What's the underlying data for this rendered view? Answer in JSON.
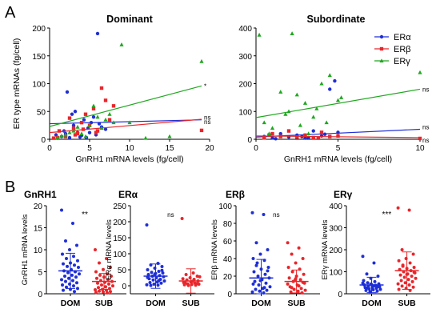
{
  "panel_labels": [
    "A",
    "B"
  ],
  "chart_data": [
    {
      "type": "scatter",
      "title": "Dominant",
      "xlabel": "GnRH1 mRNA levels (fg/cell)",
      "ylabel": "ER type mRNAs (fg/cell)",
      "xlim": [
        0,
        20
      ],
      "ylim": [
        0,
        200
      ],
      "xticks": [
        0,
        5,
        10,
        15,
        20
      ],
      "yticks": [
        0,
        50,
        100,
        150,
        200
      ],
      "series": [
        {
          "name": "ERα",
          "color": "#1f2fd6",
          "marker": "circle",
          "points": [
            [
              1,
              2
            ],
            [
              1.5,
              5
            ],
            [
              2,
              10
            ],
            [
              2.5,
              3
            ],
            [
              2.8,
              45
            ],
            [
              3,
              25
            ],
            [
              3.2,
              50
            ],
            [
              3.5,
              12
            ],
            [
              4,
              7
            ],
            [
              4.3,
              35
            ],
            [
              4.8,
              20
            ],
            [
              5,
              12
            ],
            [
              5.2,
              30
            ],
            [
              5.5,
              40
            ],
            [
              5.8,
              8
            ],
            [
              6,
              190
            ],
            [
              6.5,
              22
            ],
            [
              7,
              18
            ],
            [
              0.8,
              8
            ],
            [
              1.8,
              15
            ],
            [
              2.2,
              85
            ],
            [
              3.8,
              4
            ],
            [
              6.2,
              28
            ],
            [
              4.6,
              3
            ]
          ],
          "fit": [
            [
              0,
              28
            ],
            [
              19,
              35
            ]
          ],
          "fit_label": "ns"
        },
        {
          "name": "ERβ",
          "color": "#e8262b",
          "marker": "square",
          "points": [
            [
              1.2,
              15
            ],
            [
              2,
              5
            ],
            [
              2.5,
              38
            ],
            [
              3,
              20
            ],
            [
              3.5,
              10
            ],
            [
              4,
              30
            ],
            [
              4.5,
              45
            ],
            [
              5,
              25
            ],
            [
              5.5,
              55
            ],
            [
              6,
              15
            ],
            [
              6.5,
              92
            ],
            [
              7,
              70
            ],
            [
              7.5,
              35
            ],
            [
              8,
              60
            ],
            [
              1,
              3
            ],
            [
              3.2,
              8
            ],
            [
              5.8,
              12
            ],
            [
              19,
              16
            ],
            [
              0.5,
              2
            ],
            [
              4.2,
              18
            ]
          ],
          "fit": [
            [
              0,
              12
            ],
            [
              19,
              36
            ]
          ],
          "fit_label": "ns"
        },
        {
          "name": "ERγ",
          "color": "#1fa81f",
          "marker": "triangle",
          "points": [
            [
              1,
              3
            ],
            [
              2,
              8
            ],
            [
              3,
              15
            ],
            [
              4,
              10
            ],
            [
              5,
              25
            ],
            [
              6,
              40
            ],
            [
              6.5,
              20
            ],
            [
              7,
              35
            ],
            [
              8,
              30
            ],
            [
              9,
              170
            ],
            [
              10,
              30
            ],
            [
              12,
              2
            ],
            [
              15,
              5
            ],
            [
              19,
              140
            ],
            [
              2.5,
              12
            ],
            [
              4.5,
              5
            ],
            [
              5.5,
              60
            ],
            [
              7.5,
              45
            ],
            [
              3.5,
              22
            ],
            [
              1.5,
              6
            ]
          ],
          "fit": [
            [
              0,
              23
            ],
            [
              19,
              96
            ]
          ],
          "fit_label": "*"
        }
      ]
    },
    {
      "type": "scatter",
      "title": "Subordinate",
      "xlabel": "GnRH1 mRNA levels (fg/cell)",
      "ylabel": "",
      "xlim": [
        0,
        10
      ],
      "ylim": [
        0,
        400
      ],
      "xticks": [
        0,
        5,
        10
      ],
      "yticks": [
        0,
        100,
        200,
        300,
        400
      ],
      "legend_position": "top-right",
      "series": [
        {
          "name": "ERα",
          "color": "#1f2fd6",
          "marker": "circle",
          "points": [
            [
              0.5,
              10
            ],
            [
              1,
              5
            ],
            [
              1.5,
              20
            ],
            [
              2,
              8
            ],
            [
              2.5,
              15
            ],
            [
              3,
              4
            ],
            [
              3.5,
              30
            ],
            [
              4,
              12
            ],
            [
              4.5,
              180
            ],
            [
              4.8,
              210
            ],
            [
              5,
              25
            ],
            [
              3.2,
              6
            ],
            [
              1.2,
              2
            ],
            [
              2.8,
              10
            ],
            [
              4.2,
              18
            ]
          ],
          "fit": [
            [
              0,
              8
            ],
            [
              10,
              36
            ]
          ],
          "fit_label": "ns"
        },
        {
          "name": "ERβ",
          "color": "#e8262b",
          "marker": "square",
          "points": [
            [
              0.5,
              5
            ],
            [
              1,
              20
            ],
            [
              1.5,
              10
            ],
            [
              2,
              30
            ],
            [
              2.5,
              8
            ],
            [
              3,
              15
            ],
            [
              3.5,
              6
            ],
            [
              4,
              25
            ],
            [
              4.5,
              10
            ],
            [
              5,
              12
            ],
            [
              0.8,
              15
            ],
            [
              3.8,
              4
            ],
            [
              10,
              3
            ]
          ],
          "fit": [
            [
              0,
              12
            ],
            [
              10,
              6
            ]
          ],
          "fit_label": "ns"
        },
        {
          "name": "ERγ",
          "color": "#1fa81f",
          "marker": "triangle",
          "points": [
            [
              0.2,
              375
            ],
            [
              0.5,
              60
            ],
            [
              1,
              40
            ],
            [
              1.5,
              170
            ],
            [
              2,
              100
            ],
            [
              2.5,
              160
            ],
            [
              3,
              130
            ],
            [
              3.5,
              80
            ],
            [
              4,
              200
            ],
            [
              4.5,
              230
            ],
            [
              5,
              140
            ],
            [
              5.2,
              150
            ],
            [
              10,
              240
            ],
            [
              2.2,
              380
            ],
            [
              3.2,
              20
            ],
            [
              1.8,
              90
            ],
            [
              4.3,
              60
            ],
            [
              0.8,
              20
            ],
            [
              2.7,
              50
            ],
            [
              3.7,
              110
            ]
          ],
          "fit": [
            [
              0,
              78
            ],
            [
              10,
              180
            ]
          ],
          "fit_label": "ns"
        }
      ]
    },
    {
      "type": "scatter",
      "title": "GnRH1",
      "ylabel": "GnRH1 mRNA levels",
      "categories": [
        "DOM",
        "SUB"
      ],
      "ylim": [
        0,
        20
      ],
      "yticks": [
        0,
        5,
        10,
        15,
        20
      ],
      "significance": "**",
      "series": [
        {
          "name": "DOM",
          "color": "#1f2fd6",
          "mean": 5.2,
          "sd": 4.0,
          "values": [
            19,
            16,
            12,
            11,
            10,
            9,
            8.5,
            8,
            7.5,
            7,
            6.8,
            6.5,
            6.2,
            6,
            5.5,
            5.2,
            5,
            4.8,
            4.5,
            4.2,
            4,
            3.8,
            3.5,
            3.2,
            3,
            2.8,
            2.5,
            2.2,
            2,
            1.8,
            1.5,
            1.2,
            1,
            0.8,
            0.5
          ]
        },
        {
          "name": "SUB",
          "color": "#e8262b",
          "mean": 2.8,
          "sd": 1.8,
          "values": [
            10,
            8,
            7,
            6,
            5.5,
            5,
            4.5,
            4.2,
            4,
            3.8,
            3.5,
            3.2,
            3,
            2.8,
            2.6,
            2.4,
            2.2,
            2,
            1.8,
            1.6,
            1.4,
            1.2,
            1,
            0.9,
            0.8,
            0.6,
            0.5,
            0.4,
            0.3,
            0.2
          ]
        }
      ]
    },
    {
      "type": "scatter",
      "title": "ERα",
      "ylabel": "ERα mRNA levels",
      "categories": [
        "DOM",
        "SUB"
      ],
      "ylim": [
        -25,
        250
      ],
      "yticks": [
        0,
        50,
        100,
        150,
        200,
        250
      ],
      "significance": "ns",
      "series": [
        {
          "name": "DOM",
          "color": "#1f2fd6",
          "mean": 30,
          "sd": 38,
          "values": [
            190,
            70,
            65,
            60,
            55,
            50,
            45,
            42,
            40,
            38,
            35,
            32,
            30,
            28,
            25,
            22,
            20,
            18,
            15,
            12,
            10,
            8,
            5,
            3,
            2,
            1,
            48,
            36,
            26,
            16
          ]
        },
        {
          "name": "SUB",
          "color": "#e8262b",
          "mean": 15,
          "sd": 38,
          "values": [
            210,
            40,
            35,
            30,
            25,
            22,
            20,
            18,
            15,
            12,
            10,
            8,
            6,
            5,
            4,
            3,
            2,
            1,
            28,
            14,
            9,
            7
          ]
        }
      ]
    },
    {
      "type": "scatter",
      "title": "ERβ",
      "ylabel": "ERβ mRNA levels",
      "categories": [
        "DOM",
        "SUB"
      ],
      "ylim": [
        0,
        100
      ],
      "yticks": [
        0,
        20,
        40,
        60,
        80,
        100
      ],
      "significance": "ns",
      "series": [
        {
          "name": "DOM",
          "color": "#1f2fd6",
          "mean": 18,
          "sd": 21,
          "values": [
            92,
            90,
            58,
            50,
            45,
            40,
            38,
            35,
            30,
            28,
            25,
            22,
            20,
            18,
            16,
            14,
            12,
            10,
            8,
            6,
            5,
            4,
            3,
            2,
            1,
            32,
            26,
            15,
            11,
            7
          ]
        },
        {
          "name": "SUB",
          "color": "#e8262b",
          "mean": 14,
          "sd": 13,
          "values": [
            58,
            52,
            45,
            40,
            35,
            30,
            28,
            25,
            22,
            20,
            18,
            16,
            14,
            12,
            10,
            8,
            6,
            5,
            4,
            3,
            2,
            1,
            15,
            11,
            9,
            7,
            13,
            17
          ]
        }
      ]
    },
    {
      "type": "scatter",
      "title": "ERγ",
      "ylabel": "ERγ mRNA levels",
      "categories": [
        "DOM",
        "SUB"
      ],
      "ylim": [
        0,
        400
      ],
      "yticks": [
        0,
        100,
        200,
        300,
        400
      ],
      "significance": "***",
      "series": [
        {
          "name": "DOM",
          "color": "#1f2fd6",
          "mean": 40,
          "sd": 35,
          "values": [
            170,
            140,
            90,
            80,
            70,
            60,
            55,
            50,
            45,
            42,
            40,
            38,
            35,
            32,
            30,
            28,
            25,
            22,
            20,
            18,
            15,
            12,
            10,
            48,
            36,
            26,
            33,
            44
          ]
        },
        {
          "name": "SUB",
          "color": "#e8262b",
          "mean": 105,
          "sd": 85,
          "values": [
            390,
            380,
            200,
            180,
            160,
            150,
            140,
            130,
            120,
            115,
            110,
            105,
            100,
            95,
            90,
            85,
            80,
            75,
            70,
            65,
            60,
            55,
            50,
            45,
            40,
            35,
            30,
            25,
            20,
            15,
            125,
            98,
            88
          ]
        }
      ]
    }
  ]
}
